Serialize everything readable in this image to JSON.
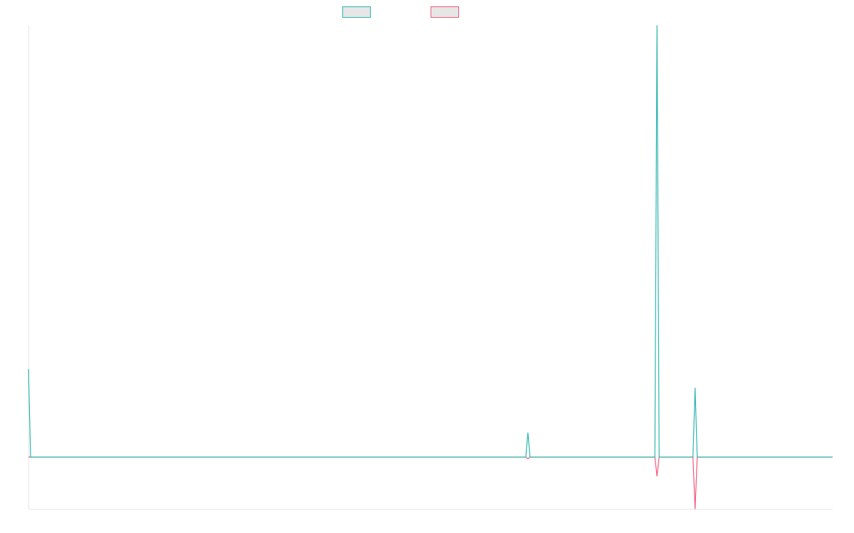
{
  "chart_data": {
    "type": "line",
    "title": "",
    "xlabel": "",
    "ylabel": "",
    "grid": false,
    "legend_position": "top-center",
    "x": [
      0,
      1,
      2,
      3,
      4,
      5,
      6,
      7,
      8,
      9,
      10,
      11,
      12,
      13,
      14,
      15,
      16,
      17,
      18,
      19,
      20,
      21,
      22,
      23,
      24,
      25,
      26,
      27,
      28,
      29,
      30,
      31,
      32,
      33,
      34,
      35,
      36,
      37,
      38,
      39,
      40,
      41,
      42,
      43,
      44,
      45,
      46,
      47,
      48,
      49,
      50,
      51,
      52,
      53,
      54,
      55,
      56,
      57,
      58,
      59,
      60,
      61,
      62,
      63,
      64,
      65,
      66,
      67,
      68,
      69,
      70,
      71,
      72,
      73,
      74,
      75,
      76,
      77,
      78,
      79,
      80,
      81,
      82,
      83,
      84,
      85,
      86,
      87,
      88,
      89,
      90,
      91,
      92,
      93,
      94,
      95,
      96,
      97,
      98,
      99,
      100,
      101,
      102,
      103,
      104,
      105,
      106,
      107,
      108,
      109,
      110,
      111,
      112,
      113,
      114,
      115,
      116,
      117,
      118,
      119,
      120,
      121,
      122,
      123,
      124,
      125,
      126,
      127,
      128,
      129,
      130,
      131,
      132,
      133,
      134,
      135,
      136,
      137,
      138,
      139,
      140,
      141,
      142,
      143,
      144,
      145,
      146,
      147,
      148,
      149,
      150,
      151,
      152,
      153,
      154,
      155,
      156,
      157,
      158,
      159,
      160,
      161,
      162,
      163,
      164,
      165,
      166,
      167,
      168,
      169,
      170,
      171,
      172,
      173,
      174,
      175,
      176,
      177,
      178,
      179,
      180,
      181,
      182,
      183,
      184,
      185,
      186,
      187,
      188,
      189,
      190,
      191,
      192,
      193,
      194,
      195,
      196,
      197,
      198,
      199,
      200,
      201,
      202,
      203,
      204,
      205,
      206,
      207,
      208,
      209,
      210,
      211,
      212,
      213,
      214,
      215,
      216,
      217,
      218,
      219,
      220,
      221,
      222,
      223,
      224,
      225,
      226,
      227,
      228,
      229,
      230,
      231,
      232,
      233,
      234,
      235,
      236,
      237,
      238,
      239,
      240,
      241,
      242,
      243,
      244,
      245,
      246,
      247,
      248,
      249,
      250,
      251,
      252,
      253,
      254,
      255,
      256,
      257,
      258,
      259,
      260,
      261,
      262,
      263,
      264,
      265,
      266,
      267,
      268,
      269,
      270,
      271,
      272,
      273,
      274,
      275,
      276,
      277,
      278,
      279,
      280,
      281,
      282,
      283,
      284,
      285,
      286,
      287,
      288,
      289,
      290,
      291,
      292,
      293,
      294,
      295,
      296,
      297,
      298,
      299,
      300,
      301,
      302,
      303,
      304,
      305,
      306,
      307,
      308,
      309,
      310,
      311,
      312,
      313,
      314,
      315,
      316,
      317,
      318,
      319,
      320,
      321,
      322,
      323,
      324,
      325,
      326,
      327,
      328,
      329,
      330,
      331,
      332,
      333,
      334,
      335,
      336,
      337,
      338,
      339,
      340,
      341,
      342,
      343,
      344,
      345,
      346,
      347,
      348,
      349,
      350,
      351,
      352,
      353,
      354,
      355,
      356,
      357,
      358,
      359,
      360,
      361,
      362,
      363,
      364,
      365,
      366,
      367,
      368,
      369,
      370,
      371,
      372,
      373,
      374,
      375,
      376,
      377,
      378,
      379,
      380
    ],
    "x_range": [
      0,
      380
    ],
    "ylim": [
      -0.3,
      2.5
    ],
    "series": [
      {
        "name": "",
        "color": "#2bb5b0",
        "fill": "#e6e6e6",
        "points": [
          [
            0,
            0.51
          ],
          [
            1,
            0
          ],
          [
            235,
            0
          ],
          [
            236,
            0.14
          ],
          [
            237,
            0
          ],
          [
            296,
            0
          ],
          [
            297,
            2.5
          ],
          [
            298,
            0
          ],
          [
            314,
            0
          ],
          [
            315,
            0.4
          ],
          [
            316,
            0
          ],
          [
            380,
            0
          ]
        ]
      },
      {
        "name": "",
        "color": "#f0587a",
        "fill": "#e6e6e6",
        "points": [
          [
            0,
            0
          ],
          [
            235,
            0
          ],
          [
            236,
            -0.01
          ],
          [
            237,
            0
          ],
          [
            296,
            0
          ],
          [
            297,
            -0.11
          ],
          [
            298,
            0
          ],
          [
            314,
            0
          ],
          [
            315,
            -0.3
          ],
          [
            316,
            0
          ],
          [
            380,
            0
          ]
        ]
      }
    ]
  }
}
